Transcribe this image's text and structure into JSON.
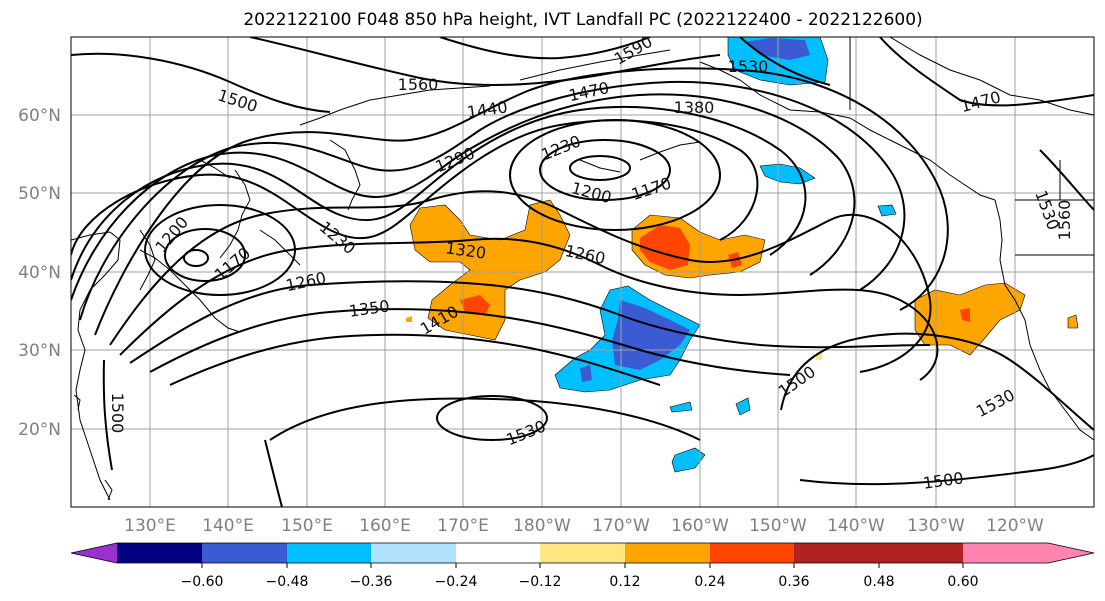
{
  "title": "2022122100 F048 850 hPa height, IVT Landfall PC (2022122400 - 2022122600)",
  "lon_ticks": [
    "130°E",
    "140°E",
    "150°E",
    "160°E",
    "170°E",
    "180°W",
    "170°W",
    "160°W",
    "150°W",
    "140°W",
    "130°W",
    "120°W"
  ],
  "lat_ticks": [
    "60°N",
    "50°N",
    "40°N",
    "30°N",
    "20°N"
  ],
  "colorbar": {
    "colors": [
      "#9b30d0",
      "#000080",
      "#3a5bd4",
      "#00bfff",
      "#b0e2ff",
      "#ffffff",
      "#ffe680",
      "#ffa500",
      "#ff4500",
      "#b22222",
      "#ff85b0"
    ],
    "ticks": [
      "−0.60",
      "−0.48",
      "−0.36",
      "−0.24",
      "−0.12",
      "0.12",
      "0.24",
      "0.36",
      "0.48",
      "0.60"
    ]
  },
  "contour_labels": [
    "1590",
    "1530",
    "1560",
    "1470",
    "1500",
    "1440",
    "1380",
    "1470",
    "1230",
    "1290",
    "1200",
    "1170",
    "1200",
    "1230",
    "1170",
    "1260",
    "1320",
    "1260",
    "1350",
    "1410",
    "1500",
    "1530",
    "1530",
    "1500",
    "1500",
    "1530",
    "1560"
  ]
}
